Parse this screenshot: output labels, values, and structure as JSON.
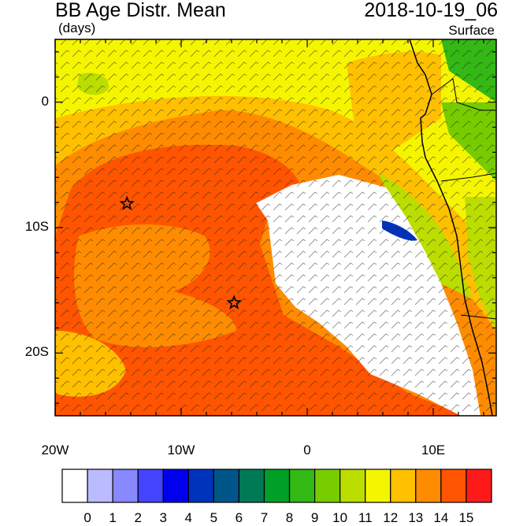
{
  "title": "BB Age Distr. Mean",
  "units": "(days)",
  "datetime": "2018-10-19_06",
  "level": "Surface",
  "lat_labels": [
    {
      "text": "0",
      "value": 0
    },
    {
      "text": "10S",
      "value": -10
    },
    {
      "text": "20S",
      "value": -20
    }
  ],
  "lon_labels": [
    {
      "text": "20W",
      "value": -20
    },
    {
      "text": "10W",
      "value": -10
    },
    {
      "text": "0",
      "value": 0
    },
    {
      "text": "10E",
      "value": 10
    }
  ],
  "extent": {
    "lon": [
      -20,
      15
    ],
    "lat": [
      -25,
      5
    ]
  },
  "colorbar": {
    "labels": [
      "0",
      "1",
      "2",
      "3",
      "4",
      "5",
      "6",
      "7",
      "8",
      "9",
      "10",
      "11",
      "12",
      "13",
      "14",
      "15"
    ],
    "colors": [
      "#ffffff",
      "#bbbbff",
      "#8888ff",
      "#4444ff",
      "#0000ee",
      "#0033bb",
      "#005588",
      "#007a55",
      "#00a028",
      "#33b814",
      "#77cc00",
      "#bbdd00",
      "#f5f500",
      "#ffc000",
      "#ff8c00",
      "#ff5500",
      "#ff1a1a"
    ]
  },
  "markers": [
    {
      "name": "star",
      "lon": -14.3,
      "lat": -8.1
    },
    {
      "name": "star",
      "lon": -5.8,
      "lat": -16.0
    }
  ]
}
